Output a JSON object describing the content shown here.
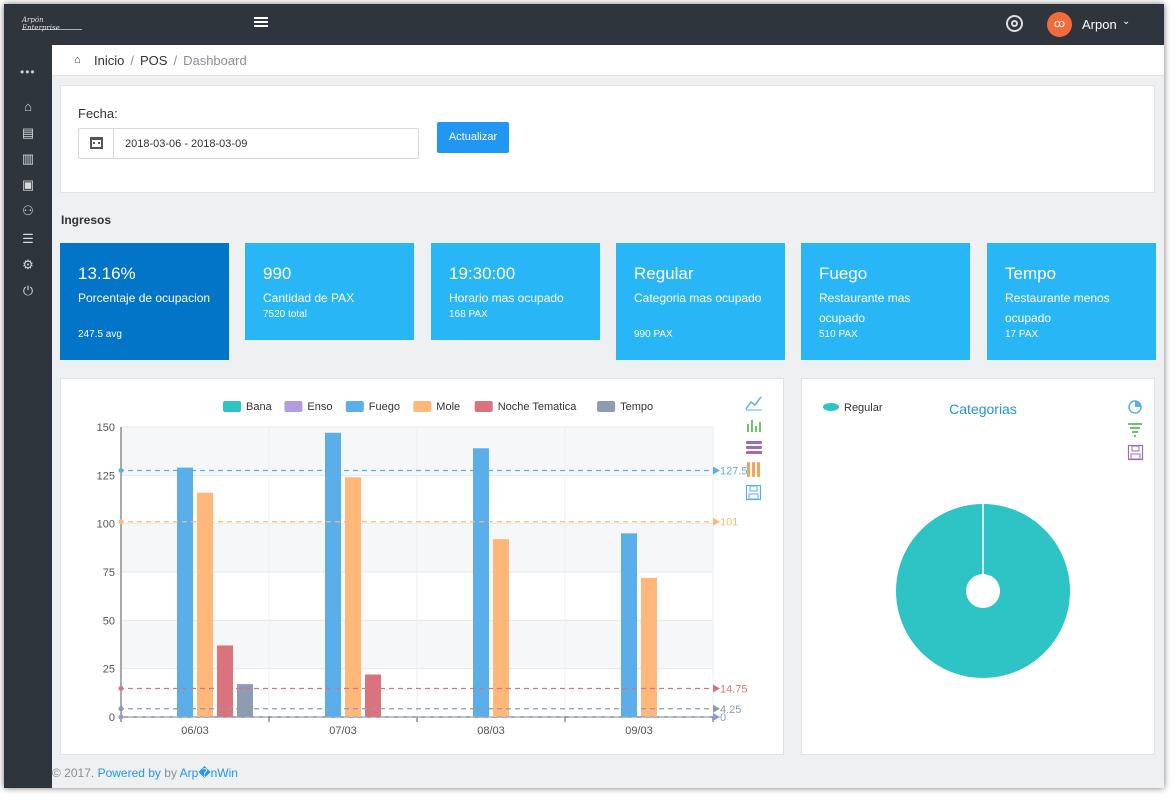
{
  "header": {
    "logo_text": "Arpón Enterprise",
    "user_initials": "ꝏ",
    "user_name": "Arpon",
    "user_caret": "⌄"
  },
  "sidebar": {
    "dots": "•••",
    "items": [
      {
        "icon": "home-icon",
        "glyph": "⌂"
      },
      {
        "icon": "book-icon",
        "glyph": "▤"
      },
      {
        "icon": "document-icon",
        "glyph": "▥"
      },
      {
        "icon": "contact-icon",
        "glyph": "▣"
      },
      {
        "icon": "users-icon",
        "glyph": "⚇"
      },
      {
        "icon": "list-icon",
        "glyph": "☰"
      },
      {
        "icon": "settings-icon",
        "glyph": "⚙"
      },
      {
        "icon": "power-icon",
        "glyph": "⏻"
      }
    ]
  },
  "breadcrumb": {
    "items": [
      "Inicio",
      "POS",
      "Dashboard"
    ],
    "separator": "/"
  },
  "filter": {
    "label": "Fecha:",
    "date_range": "2018-03-06 - 2018-03-09",
    "button_label": "Actualizar"
  },
  "section": {
    "title": "Ingresos"
  },
  "kpis": [
    {
      "value": "13.16%",
      "label": "Porcentaje de ocupacion",
      "sub": "247.5 avg"
    },
    {
      "value": "990",
      "label": "Cantidad de PAX",
      "sub": "7520 total"
    },
    {
      "value": "19:30:00",
      "label": "Horario mas ocupado",
      "sub": "168 PAX"
    },
    {
      "value": "Regular",
      "label": "Categoria mas ocupado",
      "sub": "990 PAX"
    },
    {
      "value": "Fuego",
      "label": "Restaurante mas ocupado",
      "sub": "510 PAX"
    },
    {
      "value": "Tempo",
      "label": "Restaurante menos ocupado",
      "sub": "17 PAX"
    }
  ],
  "colors": {
    "Bana": "#2ec4c6",
    "Enso": "#b39ddb",
    "Fuego": "#5aaeea",
    "Mole": "#ffb77a",
    "Noche Tematica": "#d9737e",
    "Tempo": "#8d9bb3",
    "kpi_primary": "#0275c8",
    "kpi_light": "#29b6f6"
  },
  "chart_data": [
    {
      "type": "bar",
      "categories": [
        "06/03",
        "07/03",
        "08/03",
        "09/03"
      ],
      "series": [
        {
          "name": "Bana",
          "values": [
            0,
            0,
            0,
            0
          ]
        },
        {
          "name": "Enso",
          "values": [
            0,
            0,
            0,
            0
          ]
        },
        {
          "name": "Fuego",
          "values": [
            129,
            147,
            139,
            95
          ]
        },
        {
          "name": "Mole",
          "values": [
            116,
            124,
            92,
            72
          ]
        },
        {
          "name": "Noche Tematica",
          "values": [
            37,
            22,
            0,
            0
          ]
        },
        {
          "name": "Tempo",
          "values": [
            17,
            0,
            0,
            0
          ]
        }
      ],
      "ylim": [
        0,
        150
      ],
      "yticks": [
        0,
        25,
        50,
        75,
        100,
        125,
        150
      ],
      "legend": "top",
      "grid": true,
      "mark_lines": [
        {
          "series": "Fuego",
          "label": "127.5",
          "value": 127.5
        },
        {
          "series": "Mole",
          "label": "101",
          "value": 101
        },
        {
          "series": "Noche Tematica",
          "label": "14.75",
          "value": 14.75
        },
        {
          "series": "Tempo",
          "label": "4.25",
          "value": 4.25
        },
        {
          "series": "Bana",
          "label": "0",
          "value": 0
        }
      ]
    },
    {
      "type": "pie",
      "title": "Categorias",
      "legend": "top-left",
      "slices": [
        {
          "name": "Regular",
          "value": 990
        }
      ]
    }
  ],
  "footer": {
    "copyright": "© 2017.",
    "powered_by": "Powered by",
    "by": "by",
    "brand": "Arp�nWin"
  }
}
